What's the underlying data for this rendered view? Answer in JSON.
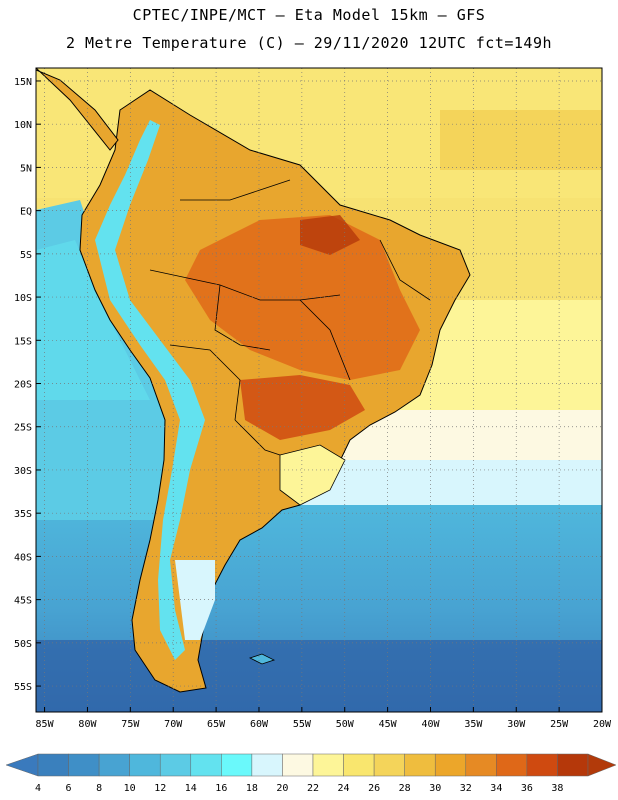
{
  "header": {
    "line1": "CPTEC/INPE/MCT –  Eta Model 15km – GFS",
    "line2": "2 Metre Temperature (C) – 29/11/2020 12UTC fct=149h"
  },
  "map": {
    "lat_labels": [
      "15N",
      "10N",
      "5N",
      "EQ",
      "5S",
      "10S",
      "15S",
      "20S",
      "25S",
      "30S",
      "35S",
      "40S",
      "45S",
      "50S",
      "55S"
    ],
    "lon_labels": [
      "85W",
      "80W",
      "75W",
      "70W",
      "65W",
      "60W",
      "55W",
      "50W",
      "45W",
      "40W",
      "35W",
      "30W",
      "25W",
      "20W"
    ],
    "lat_values": [
      15,
      10,
      5,
      0,
      -5,
      -10,
      -15,
      -20,
      -25,
      -30,
      -35,
      -40,
      -45,
      -50,
      -55
    ],
    "lon_values": [
      -85,
      -80,
      -75,
      -70,
      -65,
      -60,
      -55,
      -50,
      -45,
      -40,
      -35,
      -30,
      -25,
      -20
    ],
    "lat_range": [
      -58,
      16.5
    ],
    "lon_range": [
      -86,
      -20
    ]
  },
  "colorbar": {
    "labels": [
      "4",
      "6",
      "8",
      "10",
      "12",
      "14",
      "16",
      "18",
      "20",
      "22",
      "24",
      "26",
      "28",
      "30",
      "32",
      "34",
      "36",
      "38"
    ],
    "colors": [
      "#3a80bd",
      "#3f8fc7",
      "#48a3d2",
      "#4fb7dc",
      "#5ccbe5",
      "#63e2ef",
      "#6af9fb",
      "#d8f6fd",
      "#fdf9e2",
      "#fdf598",
      "#f9e66e",
      "#f4d45a",
      "#efbd3e",
      "#eca62a",
      "#e68a24",
      "#df6818",
      "#cf4a10",
      "#b5380a"
    ],
    "low_color": "#3a7abd",
    "high_color": "#b23a0a"
  }
}
